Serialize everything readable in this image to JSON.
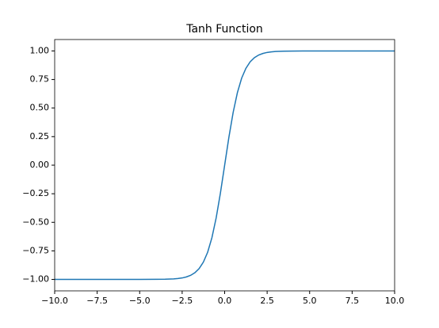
{
  "chart_data": {
    "type": "line",
    "title": "Tanh Function",
    "x": [
      -10,
      -8,
      -6,
      -5,
      -4,
      -3.5,
      -3,
      -2.75,
      -2.5,
      -2.25,
      -2,
      -1.75,
      -1.5,
      -1.25,
      -1,
      -0.75,
      -0.5,
      -0.25,
      0,
      0.25,
      0.5,
      0.75,
      1,
      1.25,
      1.5,
      1.75,
      2,
      2.25,
      2.5,
      2.75,
      3,
      3.5,
      4,
      5,
      6,
      8,
      10
    ],
    "series": [
      {
        "name": "tanh",
        "color": "#1f77b4",
        "values": [
          -1.0,
          -1.0,
          -1.0,
          -1.0,
          -0.999,
          -0.998,
          -0.995,
          -0.992,
          -0.987,
          -0.978,
          -0.964,
          -0.941,
          -0.905,
          -0.848,
          -0.762,
          -0.635,
          -0.462,
          -0.245,
          0,
          0.245,
          0.462,
          0.635,
          0.762,
          0.848,
          0.905,
          0.941,
          0.964,
          0.978,
          0.987,
          0.992,
          0.995,
          0.998,
          0.999,
          1.0,
          1.0,
          1.0,
          1.0
        ]
      }
    ],
    "xlim": [
      -10,
      10
    ],
    "xticks": [
      {
        "value": -10,
        "label": "−10.0"
      },
      {
        "value": -7.5,
        "label": "−7.5"
      },
      {
        "value": -5,
        "label": "−5.0"
      },
      {
        "value": -2.5,
        "label": "−2.5"
      },
      {
        "value": 0,
        "label": "0.0"
      },
      {
        "value": 2.5,
        "label": "2.5"
      },
      {
        "value": 5,
        "label": "5.0"
      },
      {
        "value": 7.5,
        "label": "7.5"
      },
      {
        "value": 10,
        "label": "10.0"
      }
    ],
    "ylim": [
      -1.1,
      1.1
    ],
    "yticks": [
      {
        "value": -1,
        "label": "−1.00"
      },
      {
        "value": -0.75,
        "label": "−0.75"
      },
      {
        "value": -0.5,
        "label": "−0.50"
      },
      {
        "value": -0.25,
        "label": "−0.25"
      },
      {
        "value": 0,
        "label": "0.00"
      },
      {
        "value": 0.25,
        "label": "0.25"
      },
      {
        "value": 0.5,
        "label": "0.50"
      },
      {
        "value": 0.75,
        "label": "0.75"
      },
      {
        "value": 1,
        "label": "1.00"
      }
    ],
    "grid": false
  }
}
